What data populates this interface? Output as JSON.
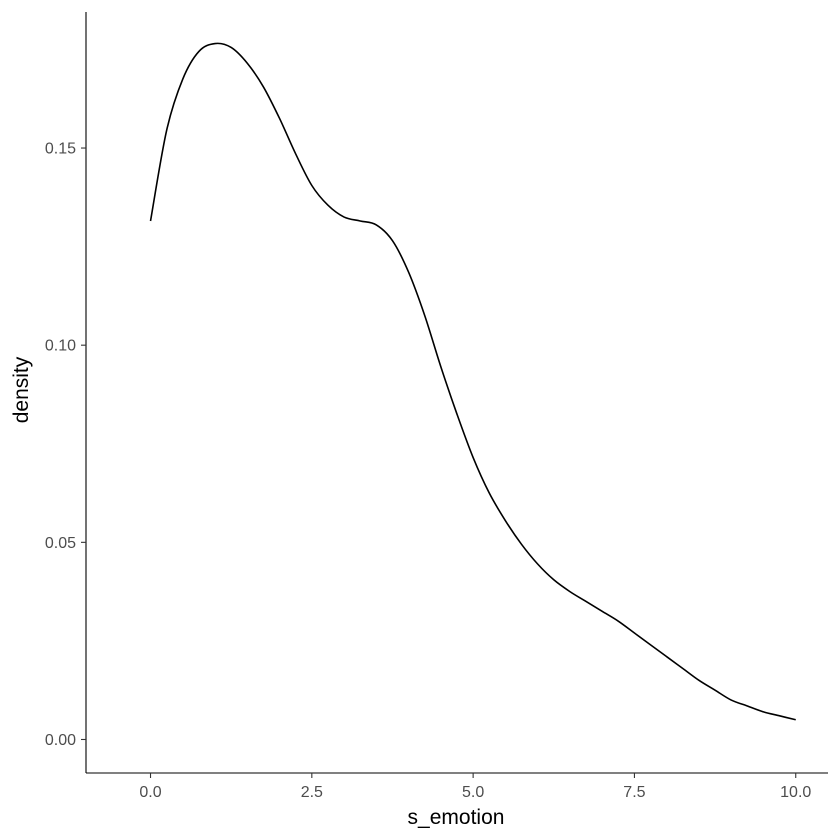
{
  "chart_data": {
    "type": "line",
    "title": "",
    "xlabel": "s_emotion",
    "ylabel": "density",
    "xlim": [
      -1,
      10.5
    ],
    "ylim": [
      -0.0085,
      0.1845
    ],
    "x_ticks": [
      0.0,
      2.5,
      5.0,
      7.5,
      10.0
    ],
    "x_tick_labels": [
      "0.0",
      "2.5",
      "5.0",
      "7.5",
      "10.0"
    ],
    "y_ticks": [
      0.0,
      0.05,
      0.1,
      0.15
    ],
    "y_tick_labels": [
      "0.00",
      "0.05",
      "0.10",
      "0.15"
    ],
    "grid": false,
    "legend": "none",
    "line_color": "#000000",
    "axis_color": "#000000",
    "series": [
      {
        "x": [
          0.0,
          0.25,
          0.5,
          0.75,
          1.0,
          1.25,
          1.5,
          1.75,
          2.0,
          2.25,
          2.5,
          2.75,
          3.0,
          3.25,
          3.5,
          3.75,
          4.0,
          4.25,
          4.5,
          4.75,
          5.0,
          5.25,
          5.5,
          5.75,
          6.0,
          6.25,
          6.5,
          6.75,
          7.0,
          7.25,
          7.5,
          7.75,
          8.0,
          8.25,
          8.5,
          8.75,
          9.0,
          9.25,
          9.5,
          9.75,
          10.0
        ],
        "y": [
          0.1315,
          0.1545,
          0.1675,
          0.1745,
          0.1765,
          0.1755,
          0.1715,
          0.1655,
          0.1575,
          0.1485,
          0.1405,
          0.1355,
          0.1325,
          0.1315,
          0.1305,
          0.1265,
          0.1185,
          0.1075,
          0.0945,
          0.0825,
          0.0715,
          0.0625,
          0.0555,
          0.0495,
          0.0445,
          0.0405,
          0.0375,
          0.035,
          0.0325,
          0.03,
          0.027,
          0.024,
          0.021,
          0.018,
          0.015,
          0.0125,
          0.01,
          0.0085,
          0.007,
          0.006,
          0.005
        ]
      }
    ]
  }
}
